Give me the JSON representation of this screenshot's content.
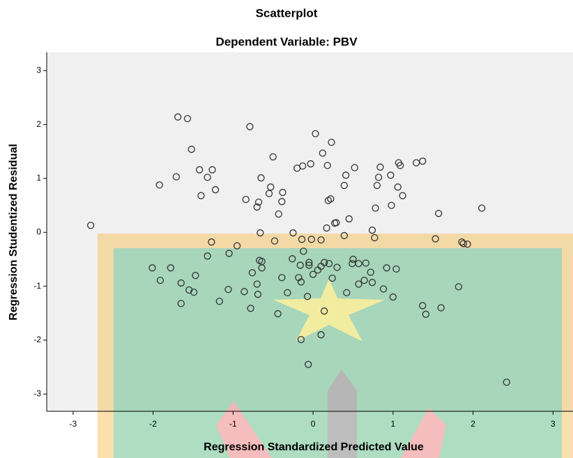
{
  "chart_data": {
    "type": "scatter",
    "title": "Scatterplot",
    "subtitle": "Dependent Variable: PBV",
    "x_label": "Regression Standardized Predicted Value",
    "y_label": "Regression Studentized Residual",
    "color": "#333333",
    "background": "#f0f0f0",
    "grid": false,
    "xlim": [
      -3.33,
      3.25
    ],
    "ylim": [
      -3.32,
      3.34
    ],
    "xticks": [
      -3,
      -2,
      -1,
      0,
      1,
      2,
      3
    ],
    "yticks": [
      -3,
      -2,
      -1,
      0,
      1,
      2,
      3
    ],
    "x": [
      -2.78,
      -1.69,
      -1.57,
      -1.52,
      -1.71,
      -1.92,
      -1.42,
      -1.26,
      -1.32,
      -1.22,
      -1.4,
      -0.79,
      -0.5,
      -0.65,
      -0.53,
      -0.55,
      -0.38,
      -0.68,
      -0.84,
      -0.7,
      -0.39,
      -0.43,
      0.03,
      0.23,
      0.12,
      -0.03,
      -0.13,
      -0.2,
      0.18,
      0.52,
      0.41,
      0.39,
      0.19,
      0.22,
      0.29,
      0.27,
      0.17,
      0.45,
      0.82,
      0.84,
      0.97,
      1.07,
      1.09,
      1.29,
      1.37,
      0.8,
      1.06,
      0.98,
      1.12,
      0.78,
      0.74,
      1.57,
      2.11,
      -0.66,
      -0.25,
      -1.27,
      -0.95,
      -0.48,
      -0.14,
      -0.02,
      0.1,
      0.39,
      0.77,
      1.53,
      1.86,
      1.93,
      1.88,
      -1.32,
      -1.05,
      -0.12,
      -2.01,
      -1.78,
      -1.91,
      -1.47,
      -1.65,
      -1.55,
      -1.49,
      -1.65,
      -1.17,
      -1.06,
      -0.86,
      -0.7,
      -0.76,
      -0.64,
      -0.67,
      -0.64,
      -0.69,
      -0.78,
      -0.44,
      -0.32,
      -0.39,
      -0.26,
      -0.16,
      -0.18,
      -0.15,
      -0.05,
      -0.05,
      0.06,
      0.1,
      0.14,
      0.2,
      0.3,
      0.0,
      -0.07,
      0.14,
      0.42,
      0.24,
      0.5,
      0.57,
      0.49,
      0.66,
      0.72,
      0.57,
      0.64,
      0.74,
      0.92,
      1.04,
      0.88,
      1.0,
      1.37,
      1.41,
      1.6,
      1.82,
      -0.15,
      0.1,
      -0.06,
      2.42
    ],
    "values": [
      0.13,
      2.14,
      2.11,
      1.54,
      1.03,
      0.88,
      1.16,
      1.16,
      1.02,
      0.79,
      0.68,
      1.96,
      1.4,
      1.01,
      0.84,
      0.72,
      0.74,
      0.56,
      0.61,
      0.47,
      0.57,
      0.34,
      1.83,
      1.67,
      1.47,
      1.27,
      1.23,
      1.19,
      1.24,
      1.2,
      1.06,
      0.87,
      0.59,
      0.62,
      0.18,
      0.17,
      0.08,
      0.25,
      1.02,
      1.21,
      1.06,
      1.29,
      1.24,
      1.29,
      1.32,
      0.87,
      0.84,
      0.5,
      0.68,
      0.45,
      0.04,
      0.35,
      0.45,
      -0.01,
      -0.01,
      -0.18,
      -0.25,
      -0.16,
      -0.13,
      -0.13,
      -0.14,
      -0.06,
      -0.1,
      -0.12,
      -0.18,
      -0.22,
      -0.21,
      -0.44,
      -0.39,
      -0.35,
      -0.66,
      -0.66,
      -0.89,
      -0.8,
      -0.94,
      -1.07,
      -1.11,
      -1.32,
      -1.28,
      -1.06,
      -1.1,
      -0.96,
      -0.75,
      -0.54,
      -0.52,
      -0.66,
      -1.15,
      -1.41,
      -1.51,
      -1.12,
      -0.84,
      -0.49,
      -0.61,
      -0.84,
      -0.92,
      -0.56,
      -0.61,
      -0.7,
      -0.63,
      -0.56,
      -0.58,
      -0.65,
      -0.78,
      -1.19,
      -1.46,
      -1.12,
      -0.85,
      -0.5,
      -0.58,
      -0.58,
      -0.57,
      -0.74,
      -0.96,
      -0.89,
      -0.93,
      -0.66,
      -0.68,
      -1.05,
      -1.2,
      -1.36,
      -1.52,
      -1.4,
      -1.01,
      -1.99,
      -1.9,
      -2.45,
      -2.78
    ]
  }
}
